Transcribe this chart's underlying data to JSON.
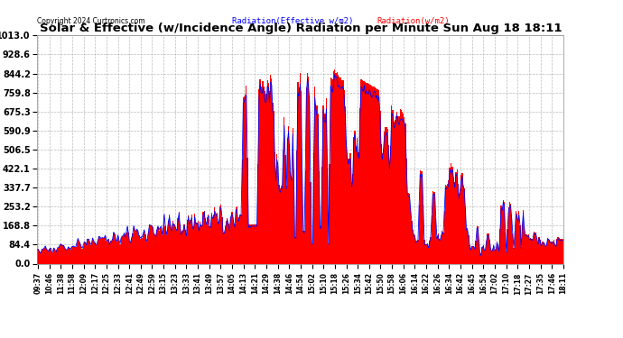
{
  "title": "Solar & Effective (w/Incidence Angle) Radiation per Minute Sun Aug 18 18:11",
  "copyright": "Copyright 2024 Curtronics.com",
  "legend_blue": "Radiation(Effective w/m2)",
  "legend_red": "Radiation(w/m2)",
  "ymin": 0.0,
  "ymax": 1013.0,
  "yticks": [
    0.0,
    84.4,
    168.8,
    253.2,
    337.7,
    422.1,
    506.5,
    590.9,
    675.3,
    759.8,
    844.2,
    928.6,
    1013.0
  ],
  "background_color": "#ffffff",
  "grid_color": "#bbbbbb",
  "bar_color": "#ff0000",
  "line_color": "#0000ff",
  "title_color": "#000000",
  "copyright_color": "#000000",
  "legend_blue_color": "#0000ff",
  "legend_red_color": "#ff0000",
  "xtick_labels": [
    "09:37",
    "10:46",
    "11:38",
    "11:58",
    "12:09",
    "12:17",
    "12:25",
    "12:33",
    "12:41",
    "12:49",
    "12:59",
    "13:15",
    "13:23",
    "13:33",
    "13:41",
    "13:49",
    "13:57",
    "14:05",
    "14:13",
    "14:21",
    "14:29",
    "14:38",
    "14:46",
    "14:54",
    "15:02",
    "15:10",
    "15:18",
    "15:26",
    "15:34",
    "15:42",
    "15:50",
    "15:58",
    "16:06",
    "16:14",
    "16:22",
    "16:26",
    "16:34",
    "16:42",
    "16:45",
    "16:54",
    "17:02",
    "17:10",
    "17:18",
    "17:27",
    "17:35",
    "17:46",
    "18:11"
  ]
}
